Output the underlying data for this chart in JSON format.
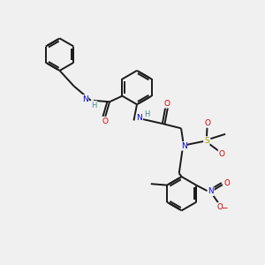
{
  "background_color": "#f0f0f0",
  "bond_color": "#1a1a1a",
  "atom_colors": {
    "N": "#0000cc",
    "O": "#cc0000",
    "S": "#999900",
    "C": "#1a1a1a",
    "H": "#4a8888"
  },
  "figsize": [
    3.0,
    3.0
  ],
  "dpi": 100,
  "xlim": [
    0,
    10
  ],
  "ylim": [
    0,
    10
  ]
}
